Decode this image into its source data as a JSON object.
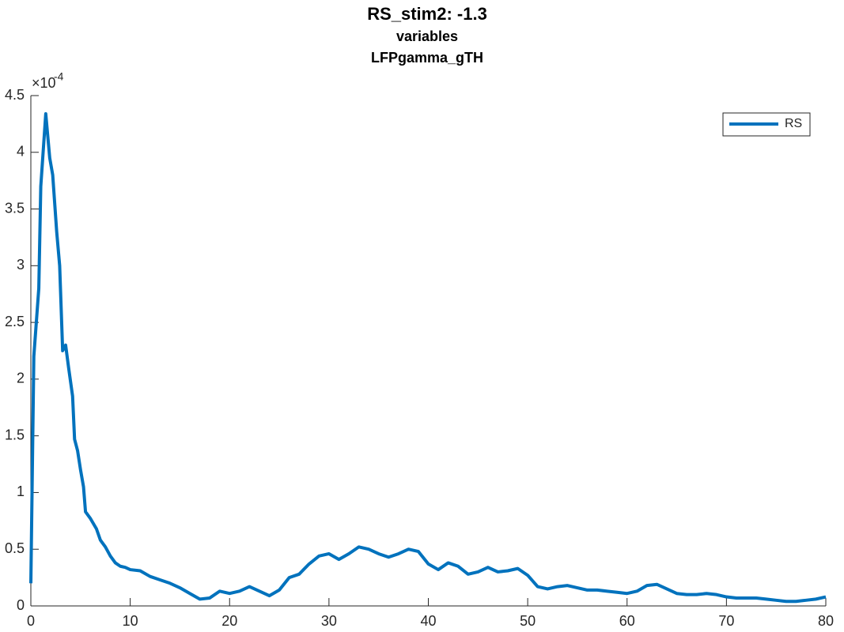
{
  "chart_data": {
    "type": "line",
    "title": "RS_stim2: -1.3",
    "subtitle": "variables",
    "subtitle2": "LFPgamma_gTH",
    "y_exponent_base": "×10",
    "y_exponent": -4,
    "x": [
      0,
      0.3,
      0.8,
      1.0,
      1.5,
      1.9,
      2.2,
      2.6,
      2.9,
      3.1,
      3.2,
      3.5,
      3.8,
      4.2,
      4.4,
      4.7,
      5.0,
      5.3,
      5.5,
      6.0,
      6.6,
      7.0,
      7.5,
      8.0,
      8.5,
      9.0,
      9.5,
      10,
      11,
      12,
      13,
      14,
      15,
      16,
      17,
      18,
      19,
      20,
      21,
      22,
      23,
      24,
      25,
      26,
      27,
      28,
      29,
      30,
      31,
      32,
      33,
      34,
      35,
      36,
      37,
      38,
      39,
      40,
      41,
      42,
      43,
      44,
      45,
      46,
      47,
      48,
      49,
      50,
      51,
      52,
      53,
      54,
      55,
      56,
      57,
      58,
      59,
      60,
      61,
      62,
      63,
      64,
      65,
      66,
      67,
      68,
      69,
      70,
      71,
      72,
      73,
      74,
      75,
      76,
      77,
      78,
      79,
      80
    ],
    "series": [
      {
        "name": "RS",
        "color": "#0072bd",
        "values": [
          0.2,
          2.2,
          2.8,
          3.7,
          4.34,
          3.95,
          3.8,
          3.3,
          3.0,
          2.5,
          2.25,
          2.3,
          2.1,
          1.85,
          1.47,
          1.37,
          1.2,
          1.05,
          0.83,
          0.77,
          0.68,
          0.58,
          0.52,
          0.44,
          0.38,
          0.35,
          0.34,
          0.32,
          0.31,
          0.26,
          0.23,
          0.2,
          0.16,
          0.11,
          0.06,
          0.07,
          0.13,
          0.11,
          0.13,
          0.17,
          0.13,
          0.09,
          0.14,
          0.25,
          0.28,
          0.37,
          0.44,
          0.46,
          0.41,
          0.46,
          0.52,
          0.5,
          0.46,
          0.43,
          0.46,
          0.5,
          0.48,
          0.37,
          0.32,
          0.38,
          0.35,
          0.28,
          0.3,
          0.34,
          0.3,
          0.31,
          0.33,
          0.27,
          0.17,
          0.15,
          0.17,
          0.18,
          0.16,
          0.14,
          0.14,
          0.13,
          0.12,
          0.11,
          0.13,
          0.18,
          0.19,
          0.15,
          0.11,
          0.1,
          0.1,
          0.11,
          0.1,
          0.08,
          0.07,
          0.07,
          0.07,
          0.06,
          0.05,
          0.04,
          0.04,
          0.05,
          0.06,
          0.08
        ]
      }
    ],
    "xlim": [
      0,
      80
    ],
    "xticks": [
      0,
      10,
      20,
      30,
      40,
      50,
      60,
      70,
      80
    ],
    "ylim": [
      0,
      4.5
    ],
    "yticks": [
      0,
      0.5,
      1,
      1.5,
      2,
      2.5,
      3,
      3.5,
      4,
      4.5
    ],
    "legend": "top-right"
  }
}
